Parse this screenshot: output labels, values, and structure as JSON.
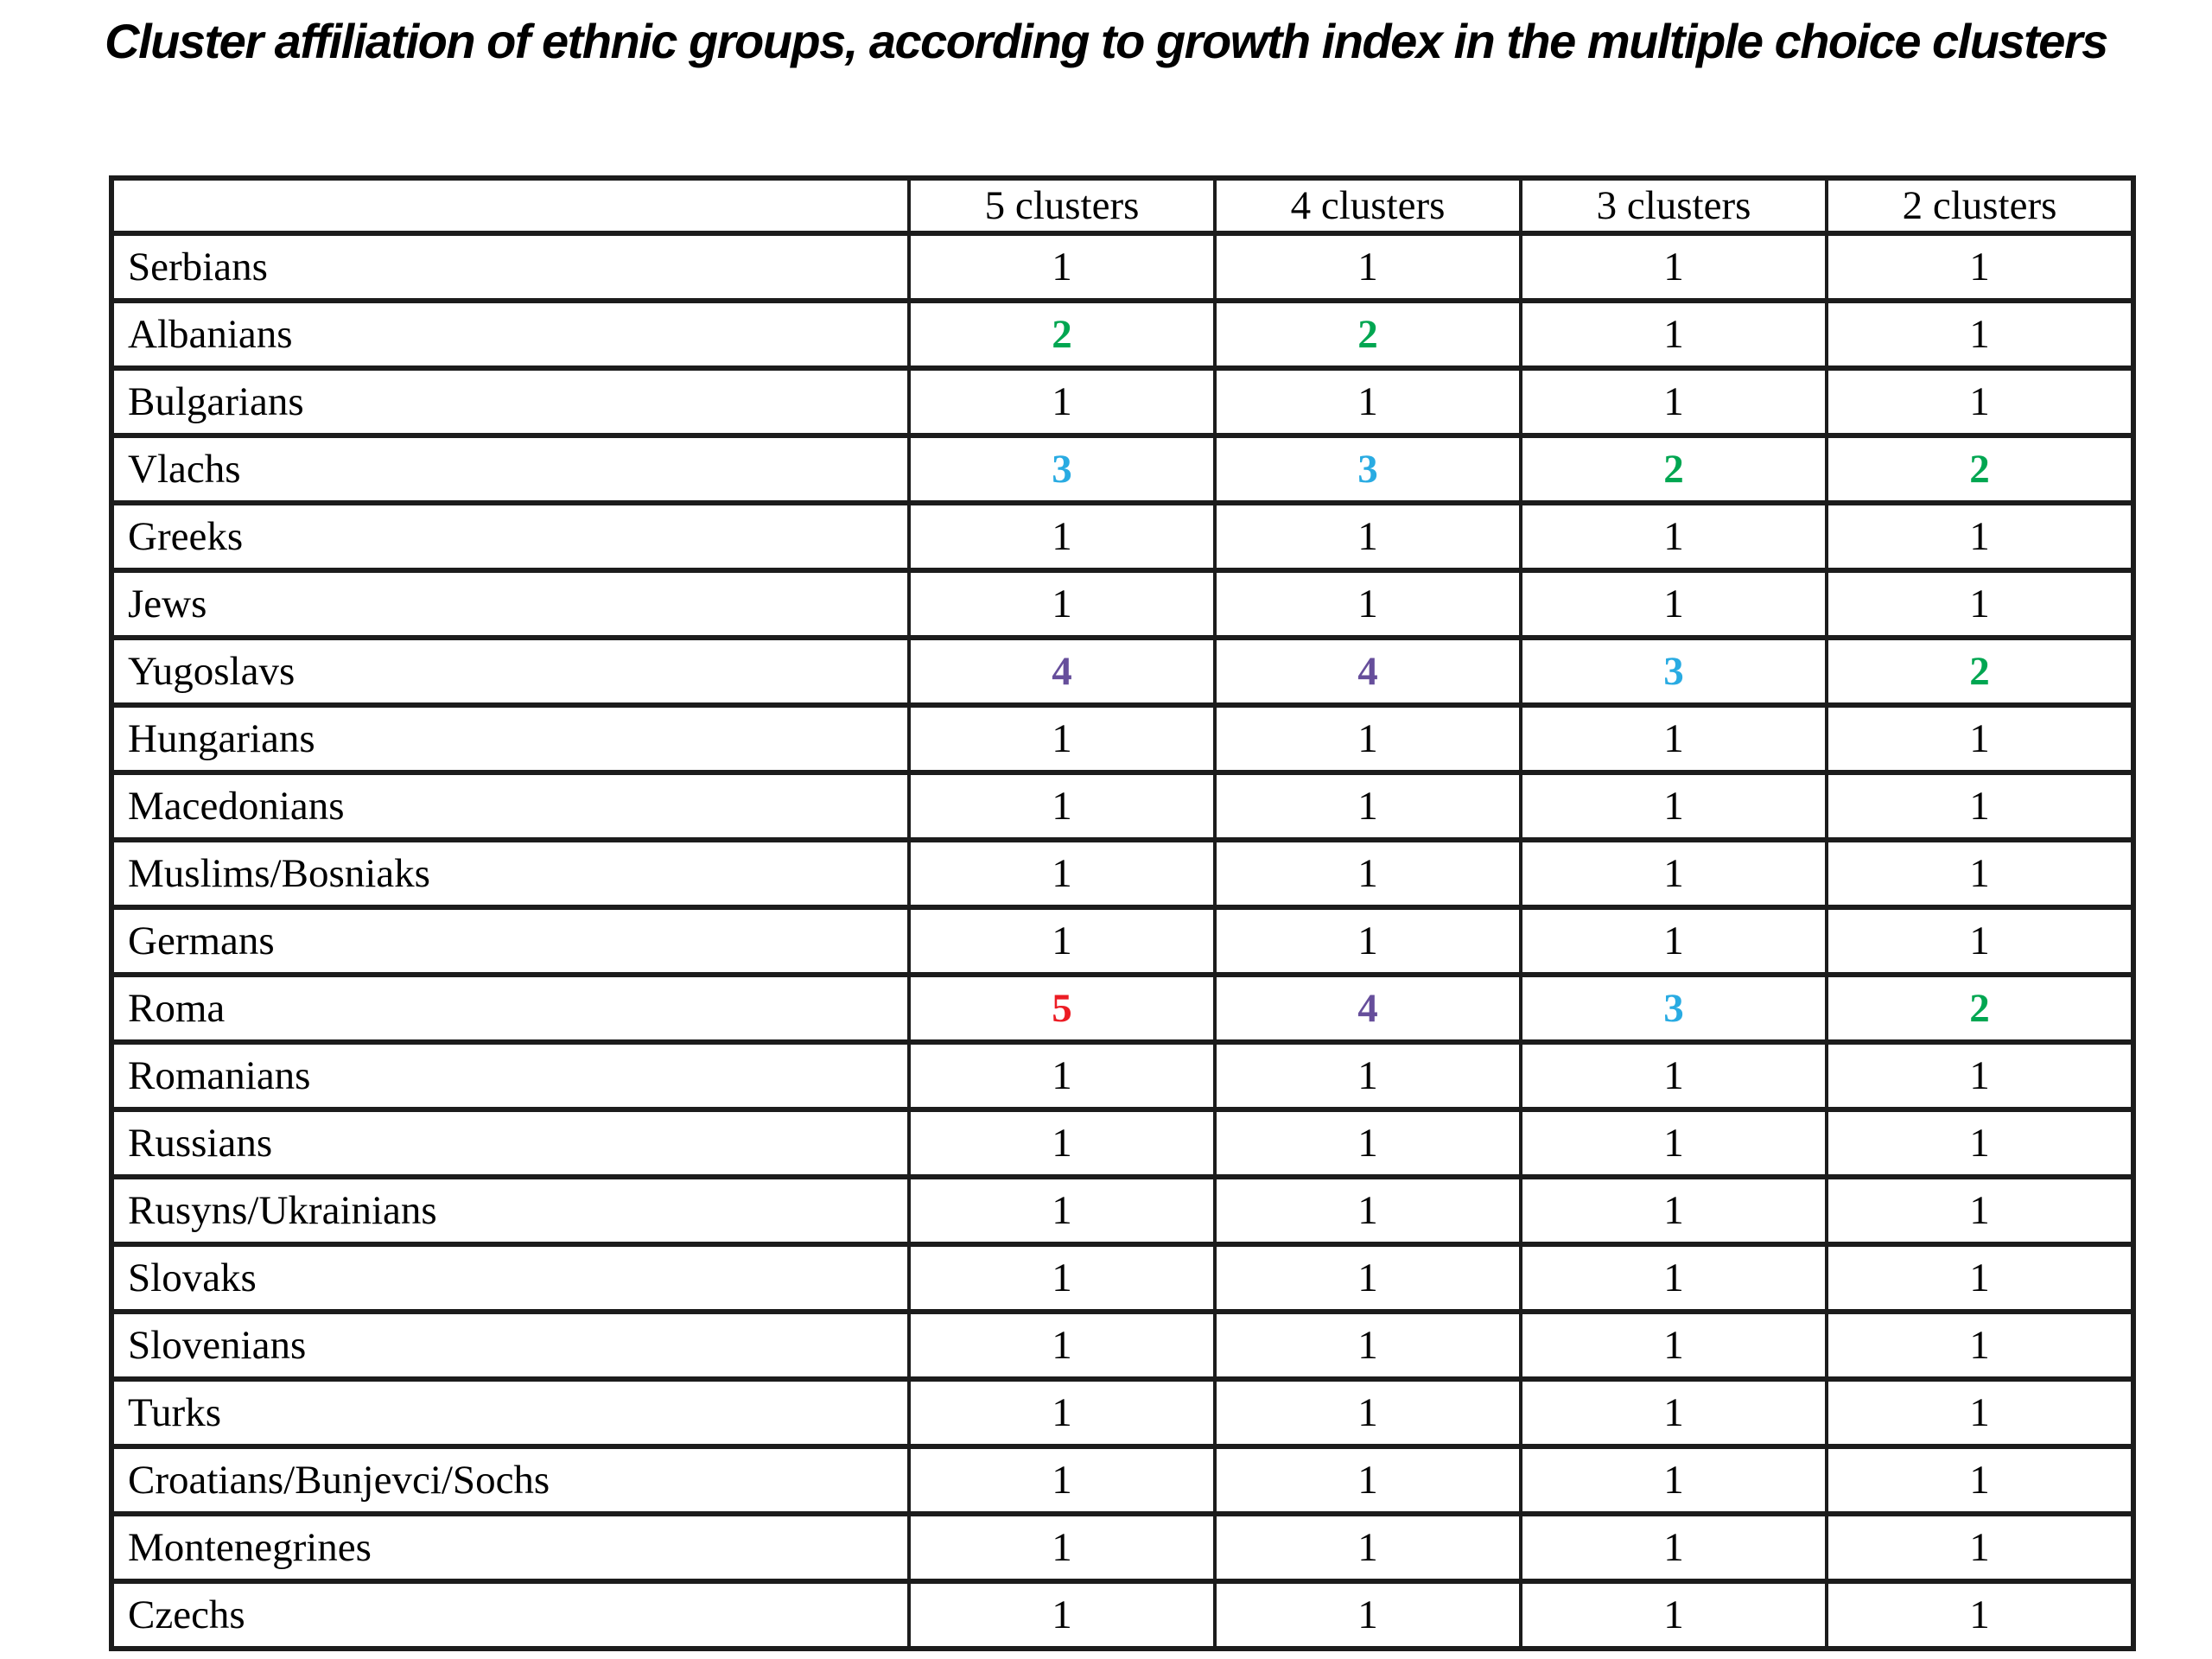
{
  "title": "Cluster affiliation of ethnic groups, according to growth index in the multiple choice clusters",
  "value_colors": {
    "black": "#000000",
    "green": "#00A651",
    "blue": "#29ABE2",
    "purple": "#664E9B",
    "red": "#EC1C24"
  },
  "table": {
    "columns": [
      "",
      "5 clusters",
      "4 clusters",
      "3 clusters",
      "2 clusters"
    ],
    "rows": [
      {
        "label": "Serbians",
        "values": [
          {
            "v": "1",
            "color": "black"
          },
          {
            "v": "1",
            "color": "black"
          },
          {
            "v": "1",
            "color": "black"
          },
          {
            "v": "1",
            "color": "black"
          }
        ]
      },
      {
        "label": "Albanians",
        "values": [
          {
            "v": "2",
            "color": "green"
          },
          {
            "v": "2",
            "color": "green"
          },
          {
            "v": "1",
            "color": "black"
          },
          {
            "v": "1",
            "color": "black"
          }
        ]
      },
      {
        "label": "Bulgarians",
        "values": [
          {
            "v": "1",
            "color": "black"
          },
          {
            "v": "1",
            "color": "black"
          },
          {
            "v": "1",
            "color": "black"
          },
          {
            "v": "1",
            "color": "black"
          }
        ]
      },
      {
        "label": "Vlachs",
        "values": [
          {
            "v": "3",
            "color": "blue"
          },
          {
            "v": "3",
            "color": "blue"
          },
          {
            "v": "2",
            "color": "green"
          },
          {
            "v": "2",
            "color": "green"
          }
        ]
      },
      {
        "label": "Greeks",
        "values": [
          {
            "v": "1",
            "color": "black"
          },
          {
            "v": "1",
            "color": "black"
          },
          {
            "v": "1",
            "color": "black"
          },
          {
            "v": "1",
            "color": "black"
          }
        ]
      },
      {
        "label": "Jews",
        "values": [
          {
            "v": "1",
            "color": "black"
          },
          {
            "v": "1",
            "color": "black"
          },
          {
            "v": "1",
            "color": "black"
          },
          {
            "v": "1",
            "color": "black"
          }
        ]
      },
      {
        "label": "Yugoslavs",
        "values": [
          {
            "v": "4",
            "color": "purple"
          },
          {
            "v": "4",
            "color": "purple"
          },
          {
            "v": "3",
            "color": "blue"
          },
          {
            "v": "2",
            "color": "green"
          }
        ]
      },
      {
        "label": "Hungarians",
        "values": [
          {
            "v": "1",
            "color": "black"
          },
          {
            "v": "1",
            "color": "black"
          },
          {
            "v": "1",
            "color": "black"
          },
          {
            "v": "1",
            "color": "black"
          }
        ]
      },
      {
        "label": "Macedonians",
        "values": [
          {
            "v": "1",
            "color": "black"
          },
          {
            "v": "1",
            "color": "black"
          },
          {
            "v": "1",
            "color": "black"
          },
          {
            "v": "1",
            "color": "black"
          }
        ]
      },
      {
        "label": "Muslims/Bosniaks",
        "values": [
          {
            "v": "1",
            "color": "black"
          },
          {
            "v": "1",
            "color": "black"
          },
          {
            "v": "1",
            "color": "black"
          },
          {
            "v": "1",
            "color": "black"
          }
        ]
      },
      {
        "label": "Germans",
        "values": [
          {
            "v": "1",
            "color": "black"
          },
          {
            "v": "1",
            "color": "black"
          },
          {
            "v": "1",
            "color": "black"
          },
          {
            "v": "1",
            "color": "black"
          }
        ]
      },
      {
        "label": "Roma",
        "values": [
          {
            "v": "5",
            "color": "red"
          },
          {
            "v": "4",
            "color": "purple"
          },
          {
            "v": "3",
            "color": "blue"
          },
          {
            "v": "2",
            "color": "green"
          }
        ]
      },
      {
        "label": "Romanians",
        "values": [
          {
            "v": "1",
            "color": "black"
          },
          {
            "v": "1",
            "color": "black"
          },
          {
            "v": "1",
            "color": "black"
          },
          {
            "v": "1",
            "color": "black"
          }
        ]
      },
      {
        "label": "Russians",
        "values": [
          {
            "v": "1",
            "color": "black"
          },
          {
            "v": "1",
            "color": "black"
          },
          {
            "v": "1",
            "color": "black"
          },
          {
            "v": "1",
            "color": "black"
          }
        ]
      },
      {
        "label": "Rusyns/Ukrainians",
        "values": [
          {
            "v": "1",
            "color": "black"
          },
          {
            "v": "1",
            "color": "black"
          },
          {
            "v": "1",
            "color": "black"
          },
          {
            "v": "1",
            "color": "black"
          }
        ]
      },
      {
        "label": "Slovaks",
        "values": [
          {
            "v": "1",
            "color": "black"
          },
          {
            "v": "1",
            "color": "black"
          },
          {
            "v": "1",
            "color": "black"
          },
          {
            "v": "1",
            "color": "black"
          }
        ]
      },
      {
        "label": "Slovenians",
        "values": [
          {
            "v": "1",
            "color": "black"
          },
          {
            "v": "1",
            "color": "black"
          },
          {
            "v": "1",
            "color": "black"
          },
          {
            "v": "1",
            "color": "black"
          }
        ]
      },
      {
        "label": "Turks",
        "values": [
          {
            "v": "1",
            "color": "black"
          },
          {
            "v": "1",
            "color": "black"
          },
          {
            "v": "1",
            "color": "black"
          },
          {
            "v": "1",
            "color": "black"
          }
        ]
      },
      {
        "label": "Croatians/Bunjevci/Sochs",
        "values": [
          {
            "v": "1",
            "color": "black"
          },
          {
            "v": "1",
            "color": "black"
          },
          {
            "v": "1",
            "color": "black"
          },
          {
            "v": "1",
            "color": "black"
          }
        ]
      },
      {
        "label": "Montenegrines",
        "values": [
          {
            "v": "1",
            "color": "black"
          },
          {
            "v": "1",
            "color": "black"
          },
          {
            "v": "1",
            "color": "black"
          },
          {
            "v": "1",
            "color": "black"
          }
        ]
      },
      {
        "label": "Czechs",
        "values": [
          {
            "v": "1",
            "color": "black"
          },
          {
            "v": "1",
            "color": "black"
          },
          {
            "v": "1",
            "color": "black"
          },
          {
            "v": "1",
            "color": "black"
          }
        ]
      }
    ]
  }
}
